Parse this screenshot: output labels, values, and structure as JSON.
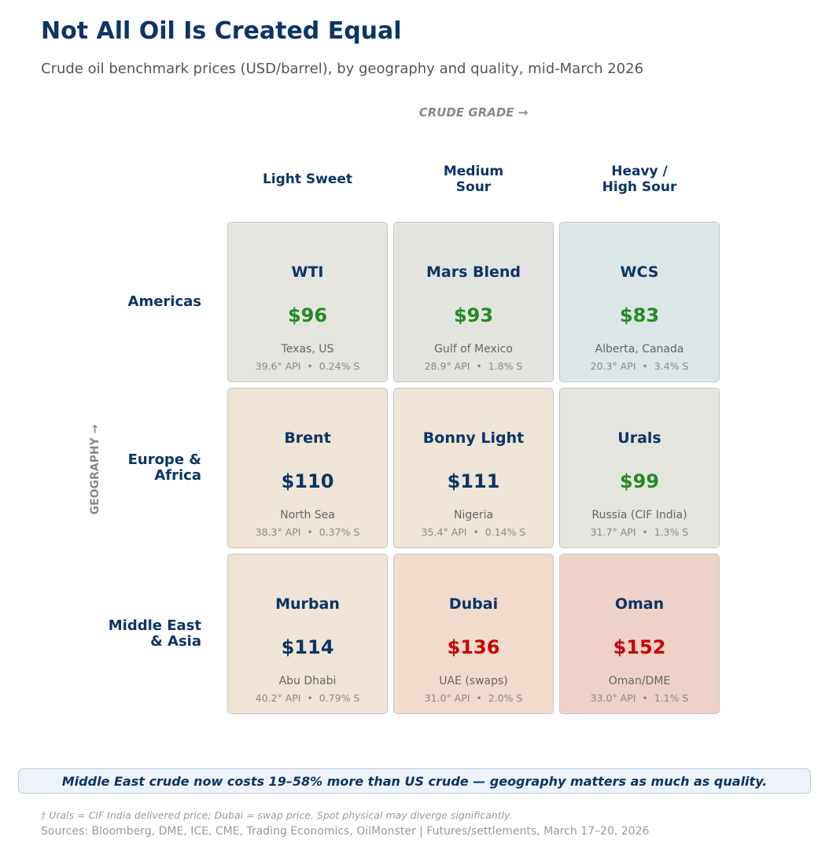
{
  "title": "Not All Oil Is Created Equal",
  "subtitle": "Crude oil benchmark prices (USD/barrel), by geography and quality, mid-March 2026",
  "colors": {
    "title": "#0b3566",
    "price_low": "#228b22",
    "price_mid": "#0b3566",
    "price_high": "#cc0000"
  },
  "chart_data": {
    "type": "table",
    "x_axis_label": "CRUDE GRADE →",
    "y_axis_label": "GEOGRAPHY →",
    "columns": [
      "Light Sweet",
      "Medium\nSour",
      "Heavy /\nHigh Sour"
    ],
    "rows": [
      "Americas",
      "Europe &\nAfrica",
      "Middle East\n& Asia"
    ],
    "cells": [
      [
        {
          "name": "WTI",
          "price": "$96",
          "value": 96,
          "location": "Texas, US",
          "spec": "39.6° API  •  0.24% S",
          "bg": "#e5e5df",
          "price_color": "#228b22"
        },
        {
          "name": "Mars Blend",
          "price": "$93",
          "value": 93,
          "location": "Gulf of Mexico",
          "spec": "28.9° API  •  1.8% S",
          "bg": "#e2e5df",
          "price_color": "#228b22"
        },
        {
          "name": "WCS",
          "price": "$83",
          "value": 83,
          "location": "Alberta, Canada",
          "spec": "20.3° API  •  3.4% S",
          "bg": "#dce6e6",
          "price_color": "#228b22"
        }
      ],
      [
        {
          "name": "Brent",
          "price": "$110",
          "value": 110,
          "location": "North Sea",
          "spec": "38.3° API  •  0.37% S",
          "bg": "#eee5d7",
          "price_color": "#0b3566"
        },
        {
          "name": "Bonny Light",
          "price": "$111",
          "value": 111,
          "location": "Nigeria",
          "spec": "35.4° API  •  0.14% S",
          "bg": "#eee5d7",
          "price_color": "#0b3566"
        },
        {
          "name": "Urals",
          "price": "$99",
          "value": 99,
          "location": "Russia (CIF India)",
          "spec": "31.7° API  •  1.3% S",
          "bg": "#e5e5df",
          "price_color": "#228b22"
        }
      ],
      [
        {
          "name": "Murban",
          "price": "$114",
          "value": 114,
          "location": "Abu Dhabi",
          "spec": "40.2° API  •  0.79% S",
          "bg": "#efe4d6",
          "price_color": "#0b3566"
        },
        {
          "name": "Dubai",
          "price": "$136",
          "value": 136,
          "location": "UAE (swaps)",
          "spec": "31.0° API  •  2.0% S",
          "bg": "#f1dbcd",
          "price_color": "#cc0000"
        },
        {
          "name": "Oman",
          "price": "$152",
          "value": 152,
          "location": "Oman/DME",
          "spec": "33.0° API  •  1.1% S",
          "bg": "#efd1c8",
          "price_color": "#cc0000"
        }
      ]
    ]
  },
  "callout": "Middle East crude now costs 19–58% more than US crude — geography matters as much as quality.",
  "footnote": "† Urals = CIF India delivered price; Dubai = swap price. Spot physical may diverge significantly.",
  "sources": "Sources: Bloomberg, DME, ICE, CME, Trading Economics, OilMonster  |  Futures/settlements, March 17–20, 2026"
}
